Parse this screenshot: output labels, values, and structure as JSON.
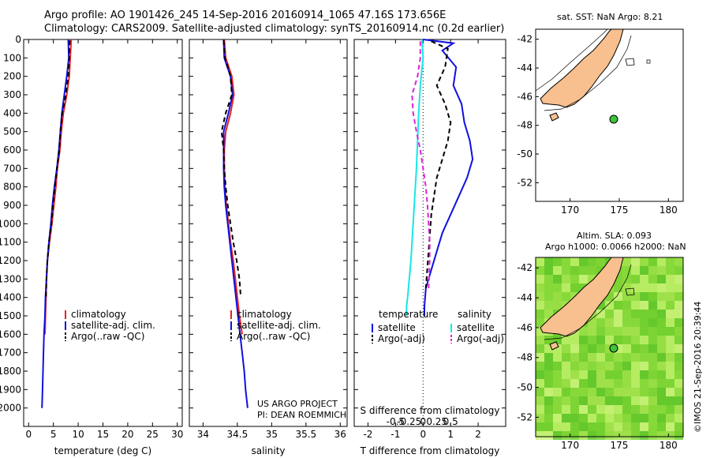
{
  "header": {
    "line1": "Argo profile: AO 1901426_245 14-Sep-2016 20160914_1065 47.16S 173.656E",
    "line2": "Climatology: CARS2009. Satellite-adjusted climatology: synTS_20160914.nc (0.2d earlier)"
  },
  "footer": {
    "project": "US ARGO PROJECT",
    "pi": "PI: DEAN ROEMMICH",
    "stamp": "©IMOS 21-Sep-2016 20:39:44"
  },
  "colors": {
    "climatology": "#e8211d",
    "satellite": "#1010e0",
    "argo": "#000000",
    "sal_satellite": "#19e6e6",
    "sal_argo": "#dd22dd",
    "land": "#f7c08e",
    "sst_marker": "#3cc43c"
  },
  "map_top": {
    "title": "sat. SST: NaN Argo: 8.21",
    "xticks": [
      "170",
      "175",
      "180"
    ],
    "yticks": [
      "-42",
      "-44",
      "-46",
      "-48",
      "-50",
      "-52"
    ]
  },
  "map_bottom": {
    "title1": "Altim. SLA: 0.093",
    "title2": "Argo h1000: 0.0066 h2000: NaN",
    "xticks": [
      "170",
      "175",
      "180"
    ],
    "yticks": [
      "-42",
      "-44",
      "-46",
      "-48",
      "-50",
      "-52"
    ]
  },
  "chart_data": [
    {
      "type": "line",
      "panel": "temperature",
      "xlabel": "temperature (deg C)",
      "ylabel": "",
      "xlim": [
        -1,
        31
      ],
      "ylim": [
        2100,
        0
      ],
      "xticks": [
        0,
        5,
        10,
        15,
        20,
        25,
        30
      ],
      "yticks": [
        0,
        100,
        200,
        300,
        400,
        500,
        600,
        700,
        800,
        900,
        1000,
        1100,
        1200,
        1300,
        1400,
        1500,
        1600,
        1700,
        1800,
        1900,
        2000
      ],
      "legend": [
        "climatology",
        "satellite-adj. clim.",
        "Argo(..raw -QC)"
      ],
      "legend_position": "bottom-right",
      "series": [
        {
          "name": "climatology",
          "style": "red-solid",
          "x": [
            8.6,
            8.4,
            8.2,
            7.7,
            7.0,
            6.6,
            6.3,
            5.8,
            5.5,
            5.1,
            4.7,
            4.2,
            3.8,
            3.6,
            3.5,
            3.4,
            3.3
          ],
          "y": [
            0,
            100,
            200,
            300,
            400,
            500,
            600,
            700,
            800,
            900,
            1000,
            1100,
            1200,
            1300,
            1400,
            1500,
            1600
          ]
        },
        {
          "name": "satellite-adj. clim.",
          "style": "blue-solid",
          "x": [
            8.0,
            8.1,
            7.7,
            7.2,
            6.7,
            6.4,
            6.1,
            5.7,
            5.2,
            4.8,
            4.5,
            4.1,
            3.8,
            3.6,
            3.4,
            3.3,
            3.1,
            3.0,
            2.9,
            2.8,
            2.7
          ],
          "y": [
            0,
            100,
            200,
            300,
            400,
            500,
            600,
            700,
            800,
            900,
            1000,
            1100,
            1200,
            1300,
            1400,
            1500,
            1600,
            1700,
            1800,
            1900,
            2000
          ]
        },
        {
          "name": "Argo(..raw -QC)",
          "style": "black-dashed",
          "x": [
            8.3,
            8.2,
            8.0,
            7.5,
            6.8,
            6.4,
            6.2,
            5.7,
            5.3,
            4.9,
            4.6,
            4.1,
            3.8,
            3.6,
            3.5
          ],
          "y": [
            5,
            100,
            200,
            300,
            400,
            500,
            600,
            700,
            800,
            900,
            1000,
            1100,
            1200,
            1300,
            1400
          ]
        }
      ]
    },
    {
      "type": "line",
      "panel": "salinity",
      "xlabel": "salinity",
      "ylabel": "",
      "xlim": [
        33.8,
        36.1
      ],
      "ylim": [
        2100,
        0
      ],
      "xticks": [
        34,
        34.5,
        35,
        35.5,
        36
      ],
      "xticklabels": [
        "34",
        "34.5",
        "35",
        "35.5",
        "36"
      ],
      "legend": [
        "climatology",
        "satellite-adj. clim.",
        "Argo(..raw -QC)"
      ],
      "legend_position": "bottom-right",
      "series": [
        {
          "name": "climatology",
          "style": "red-solid",
          "x": [
            34.31,
            34.33,
            34.42,
            34.45,
            34.4,
            34.33,
            34.31,
            34.31,
            34.32,
            34.34,
            34.37,
            34.4,
            34.44,
            34.47,
            34.5,
            34.53,
            34.57
          ],
          "y": [
            0,
            100,
            200,
            300,
            400,
            500,
            600,
            700,
            800,
            900,
            1000,
            1100,
            1200,
            1300,
            1400,
            1500,
            1600
          ]
        },
        {
          "name": "satellite-adj. clim.",
          "style": "blue-solid",
          "x": [
            34.3,
            34.31,
            34.4,
            34.43,
            34.37,
            34.3,
            34.3,
            34.3,
            34.31,
            34.33,
            34.36,
            34.39,
            34.42,
            34.45,
            34.48,
            34.51,
            34.54,
            34.57,
            34.6,
            34.62,
            34.65
          ],
          "y": [
            0,
            100,
            200,
            300,
            400,
            500,
            600,
            700,
            800,
            900,
            1000,
            1100,
            1200,
            1300,
            1400,
            1500,
            1600,
            1700,
            1800,
            1900,
            2000
          ]
        },
        {
          "name": "Argo(..raw -QC)",
          "style": "black-dashed",
          "x": [
            34.3,
            34.32,
            34.4,
            34.42,
            34.33,
            34.27,
            34.3,
            34.31,
            34.33,
            34.36,
            34.4,
            34.44,
            34.49,
            34.53,
            34.55
          ],
          "y": [
            5,
            100,
            200,
            300,
            400,
            500,
            600,
            700,
            800,
            900,
            1000,
            1100,
            1200,
            1300,
            1400
          ]
        }
      ]
    },
    {
      "type": "line",
      "panel": "difference",
      "xlabel": "T difference from climatology",
      "xlabel2": "S difference from climatology",
      "xlim": [
        -2.5,
        3
      ],
      "ylim": [
        2100,
        0
      ],
      "xticks": [
        -2,
        -1,
        0,
        1,
        2
      ],
      "xticklabels": [
        "-2",
        "-1",
        "0",
        "1",
        "2"
      ],
      "xticks2": [
        -0.5,
        -0.25,
        0,
        0.25,
        0.5
      ],
      "xticklabels2": [
        "-0.5",
        "-0.25",
        "0",
        "0.25",
        "0.5"
      ],
      "legend_groups": [
        "temperature",
        "salinity"
      ],
      "legend": [
        "satellite",
        "Argo(-adj)",
        "satellite",
        "Argo(-adj)"
      ],
      "legend_position": "bottom",
      "series": [
        {
          "name": "satellite",
          "group": "temperature",
          "style": "blue-solid",
          "x": [
            0.0,
            1.1,
            0.7,
            1.2,
            1.1,
            1.4,
            1.5,
            1.7,
            1.8,
            1.6,
            1.3,
            1.0,
            0.7,
            0.5,
            0.3,
            0.1,
            0.05,
            0.05
          ],
          "y": [
            0,
            20,
            60,
            150,
            250,
            350,
            450,
            550,
            650,
            750,
            850,
            950,
            1050,
            1150,
            1250,
            1350,
            1450,
            1500
          ]
        },
        {
          "name": "Argo(-adj)",
          "group": "temperature",
          "style": "black-dashed",
          "x": [
            0.3,
            0.9,
            0.8,
            0.5,
            0.8,
            1.0,
            0.9,
            0.7,
            0.5,
            0.4,
            0.3,
            0.2,
            0.1
          ],
          "y": [
            10,
            50,
            150,
            250,
            350,
            450,
            550,
            650,
            750,
            850,
            950,
            1150,
            1350
          ]
        },
        {
          "name": "satellite",
          "group": "salinity",
          "style": "cyan-solid",
          "x": [
            -0.02,
            0.0,
            -0.05,
            -0.08,
            -0.1,
            -0.12,
            -0.15,
            -0.18,
            -0.2,
            -0.22,
            -0.25,
            -0.28,
            -0.3,
            -0.3
          ],
          "y": [
            0,
            100,
            250,
            400,
            550,
            700,
            850,
            1000,
            1100,
            1200,
            1300,
            1400,
            1450,
            1500
          ]
        },
        {
          "name": "Argo(-adj)",
          "group": "salinity",
          "style": "magenta-dashed",
          "x": [
            -0.05,
            -0.05,
            -0.1,
            -0.2,
            -0.18,
            -0.12,
            -0.05,
            0.0,
            0.05,
            0.08,
            0.1,
            0.12,
            0.12,
            0.1
          ],
          "y": [
            10,
            100,
            200,
            300,
            400,
            500,
            600,
            700,
            800,
            900,
            1000,
            1100,
            1200,
            1350
          ]
        }
      ]
    }
  ]
}
